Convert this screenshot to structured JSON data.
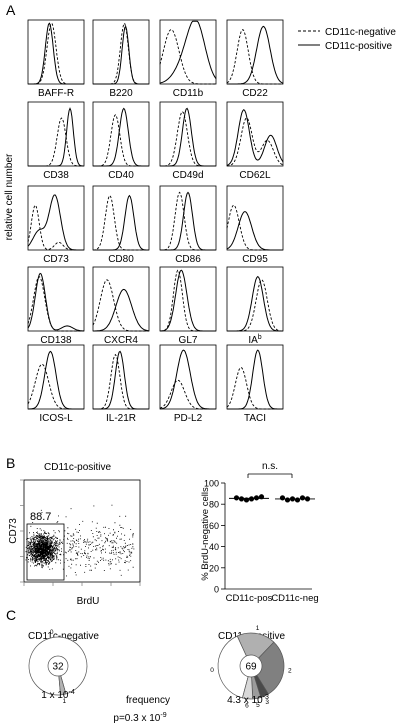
{
  "panel_labels": {
    "a": "A",
    "b": "B",
    "c": "C"
  },
  "legend": {
    "neg": "CD11c-negative",
    "pos": "CD11c-positive"
  },
  "histograms": {
    "ylabel": "relative cell number",
    "markers": [
      [
        "BAFF-R",
        "B220",
        "CD11b",
        "CD22"
      ],
      [
        "CD38",
        "CD40",
        "CD49d",
        "CD62L"
      ],
      [
        "CD73",
        "CD80",
        "CD86",
        "CD95"
      ],
      [
        "CD138",
        "CXCR4",
        "GL7",
        "IA"
      ],
      [
        "ICOS-L",
        "IL-21R",
        "PD-L2",
        "TACI"
      ]
    ],
    "ia_superscript": "b"
  },
  "chart_data": [
    {
      "type": "histogram-grid",
      "ylabel": "relative cell number",
      "series": [
        {
          "name": "CD11c-negative",
          "style": "dashed"
        },
        {
          "name": "CD11c-positive",
          "style": "solid"
        }
      ],
      "panels": [
        [
          "BAFF-R",
          "B220",
          "CD11b",
          "CD22"
        ],
        [
          "CD38",
          "CD40",
          "CD49d",
          "CD62L"
        ],
        [
          "CD73",
          "CD80",
          "CD86",
          "CD95"
        ],
        [
          "CD138",
          "CXCR4",
          "GL7",
          "IAb"
        ],
        [
          "ICOS-L",
          "IL-21R",
          "PD-L2",
          "TACI"
        ]
      ]
    },
    {
      "type": "scatter",
      "title": "CD11c-positive",
      "xlabel": "BrdU",
      "ylabel": "CD73",
      "gate_value": "88.7"
    },
    {
      "type": "scatter",
      "ylabel": "% BrdU-negative cells",
      "categories": [
        "CD11c-pos",
        "CD11c-neg"
      ],
      "ylim": [
        0,
        100
      ],
      "yticks": [
        "0",
        "20",
        "40",
        "60",
        "80",
        "100"
      ],
      "points": [
        [
          86,
          85,
          84,
          85,
          86,
          87
        ],
        [
          86,
          84,
          85,
          84,
          86,
          85
        ]
      ],
      "means": [
        85.5,
        85
      ],
      "significance": "n.s."
    },
    {
      "type": "pie",
      "title": "CD11c-negative",
      "center_label": "32",
      "slices": [
        {
          "label": "0",
          "value": 97,
          "color": "#ffffff"
        },
        {
          "label": "1",
          "value": 3,
          "color": "#b3b3b3"
        }
      ],
      "frequency": "1 x 10-4"
    },
    {
      "type": "pie",
      "title": "CD11c-positive",
      "center_label": "69",
      "slices": [
        {
          "label": "0",
          "value": 39,
          "color": "#ffffff"
        },
        {
          "label": "1",
          "value": 19,
          "color": "#b0b0b0"
        },
        {
          "label": "2",
          "value": 29,
          "color": "#808080"
        },
        {
          "label": "3",
          "value": 4,
          "color": "#4a4a4a"
        },
        {
          "label": "5",
          "value": 4,
          "color": "#9c9c9c"
        },
        {
          "label": "6",
          "value": 5,
          "color": "#d8d8d8"
        }
      ],
      "frequency": "4.3 x 10-3"
    }
  ],
  "panel_c": {
    "neg_freq_base": "1 x 10",
    "neg_freq_exp": "-4",
    "pos_freq_base": "4.3 x 10",
    "pos_freq_exp": "-3",
    "frequency_label": "frequency",
    "p_base": "p=0.3 x 10",
    "p_exp": "-9"
  }
}
